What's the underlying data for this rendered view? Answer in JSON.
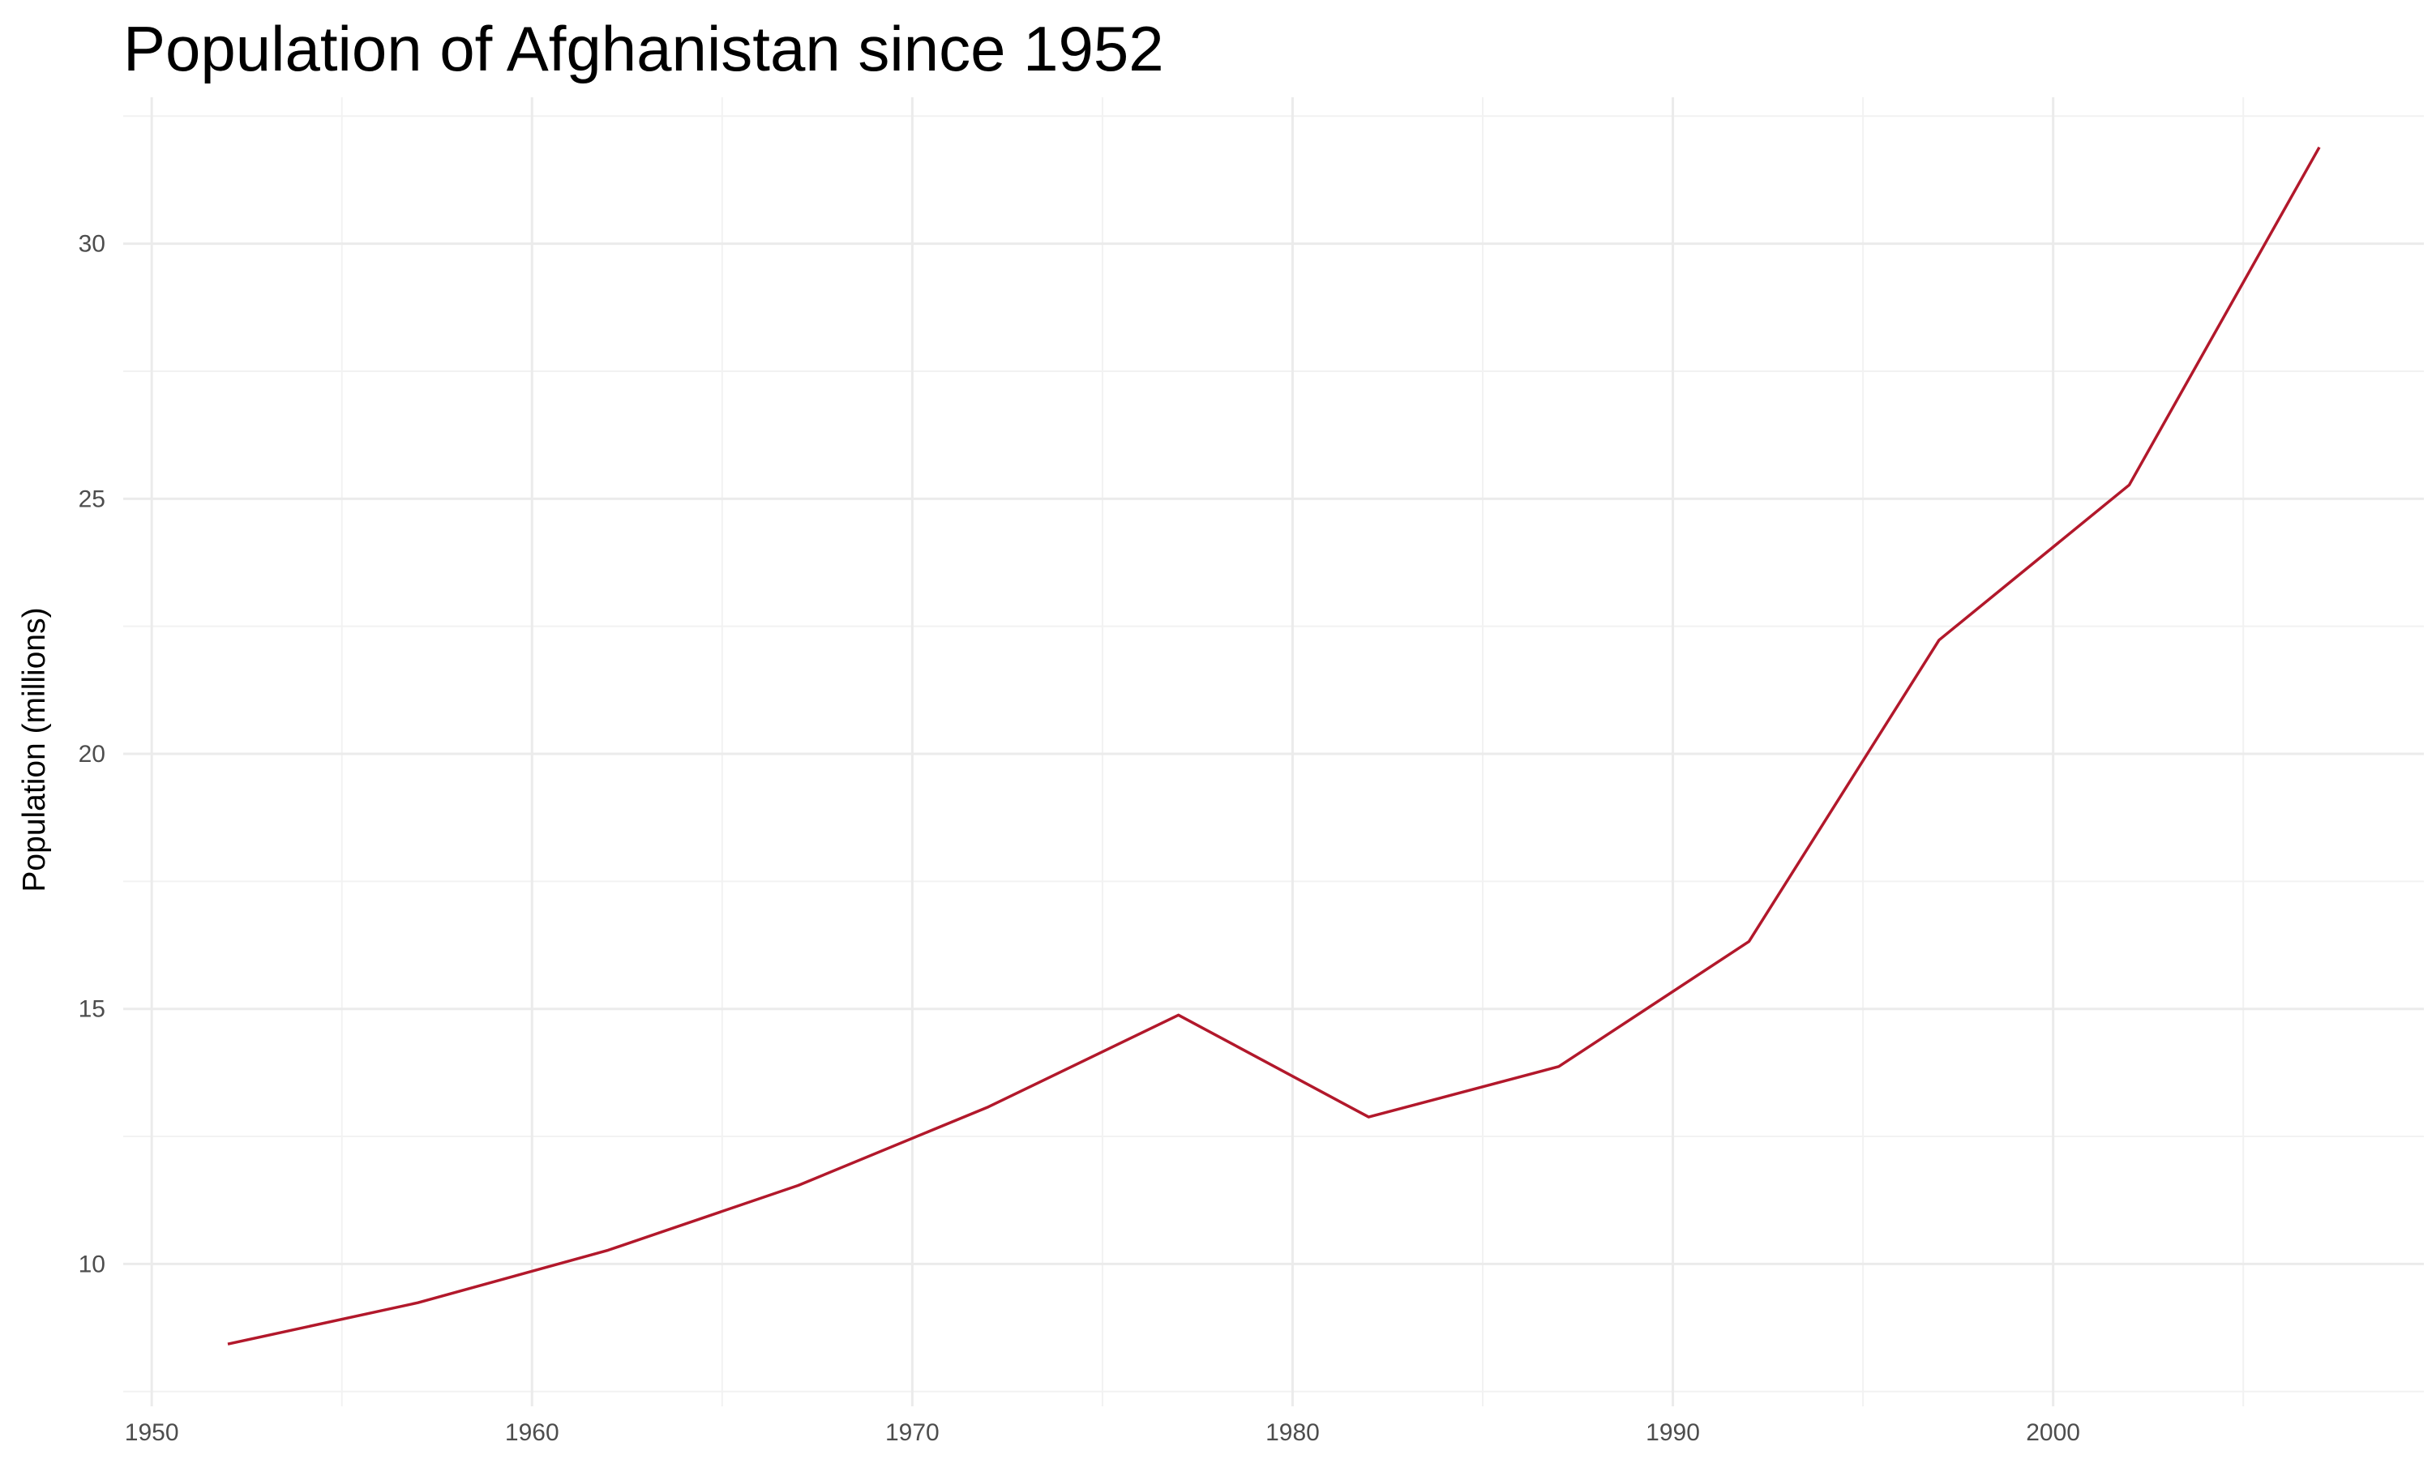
{
  "chart_data": {
    "type": "line",
    "title": "Population of Afghanistan since 1952",
    "xlabel": "",
    "ylabel": "Population (millions)",
    "xlim": [
      1949.25,
      2009.75
    ],
    "ylim": [
      7.21,
      32.87
    ],
    "x_ticks": [
      1950,
      1960,
      1970,
      1980,
      1990,
      2000
    ],
    "y_ticks": [
      10,
      15,
      20,
      25,
      30
    ],
    "x_minor_ticks": [
      1955,
      1965,
      1975,
      1985,
      1995,
      2005
    ],
    "y_minor_ticks": [
      7.5,
      12.5,
      17.5,
      22.5,
      27.5,
      32.5
    ],
    "grid": true,
    "legend": "none",
    "colors": {
      "line": "#b2182b",
      "grid_major": "#ebebeb",
      "grid_minor": "#f2f2f2"
    },
    "series": [
      {
        "name": "Afghanistan",
        "x": [
          1952,
          1957,
          1962,
          1967,
          1972,
          1977,
          1982,
          1987,
          1992,
          1997,
          2002,
          2007
        ],
        "values": [
          8.43,
          9.24,
          10.27,
          11.54,
          13.08,
          14.88,
          12.88,
          13.87,
          16.32,
          22.23,
          25.27,
          31.89
        ]
      }
    ]
  }
}
